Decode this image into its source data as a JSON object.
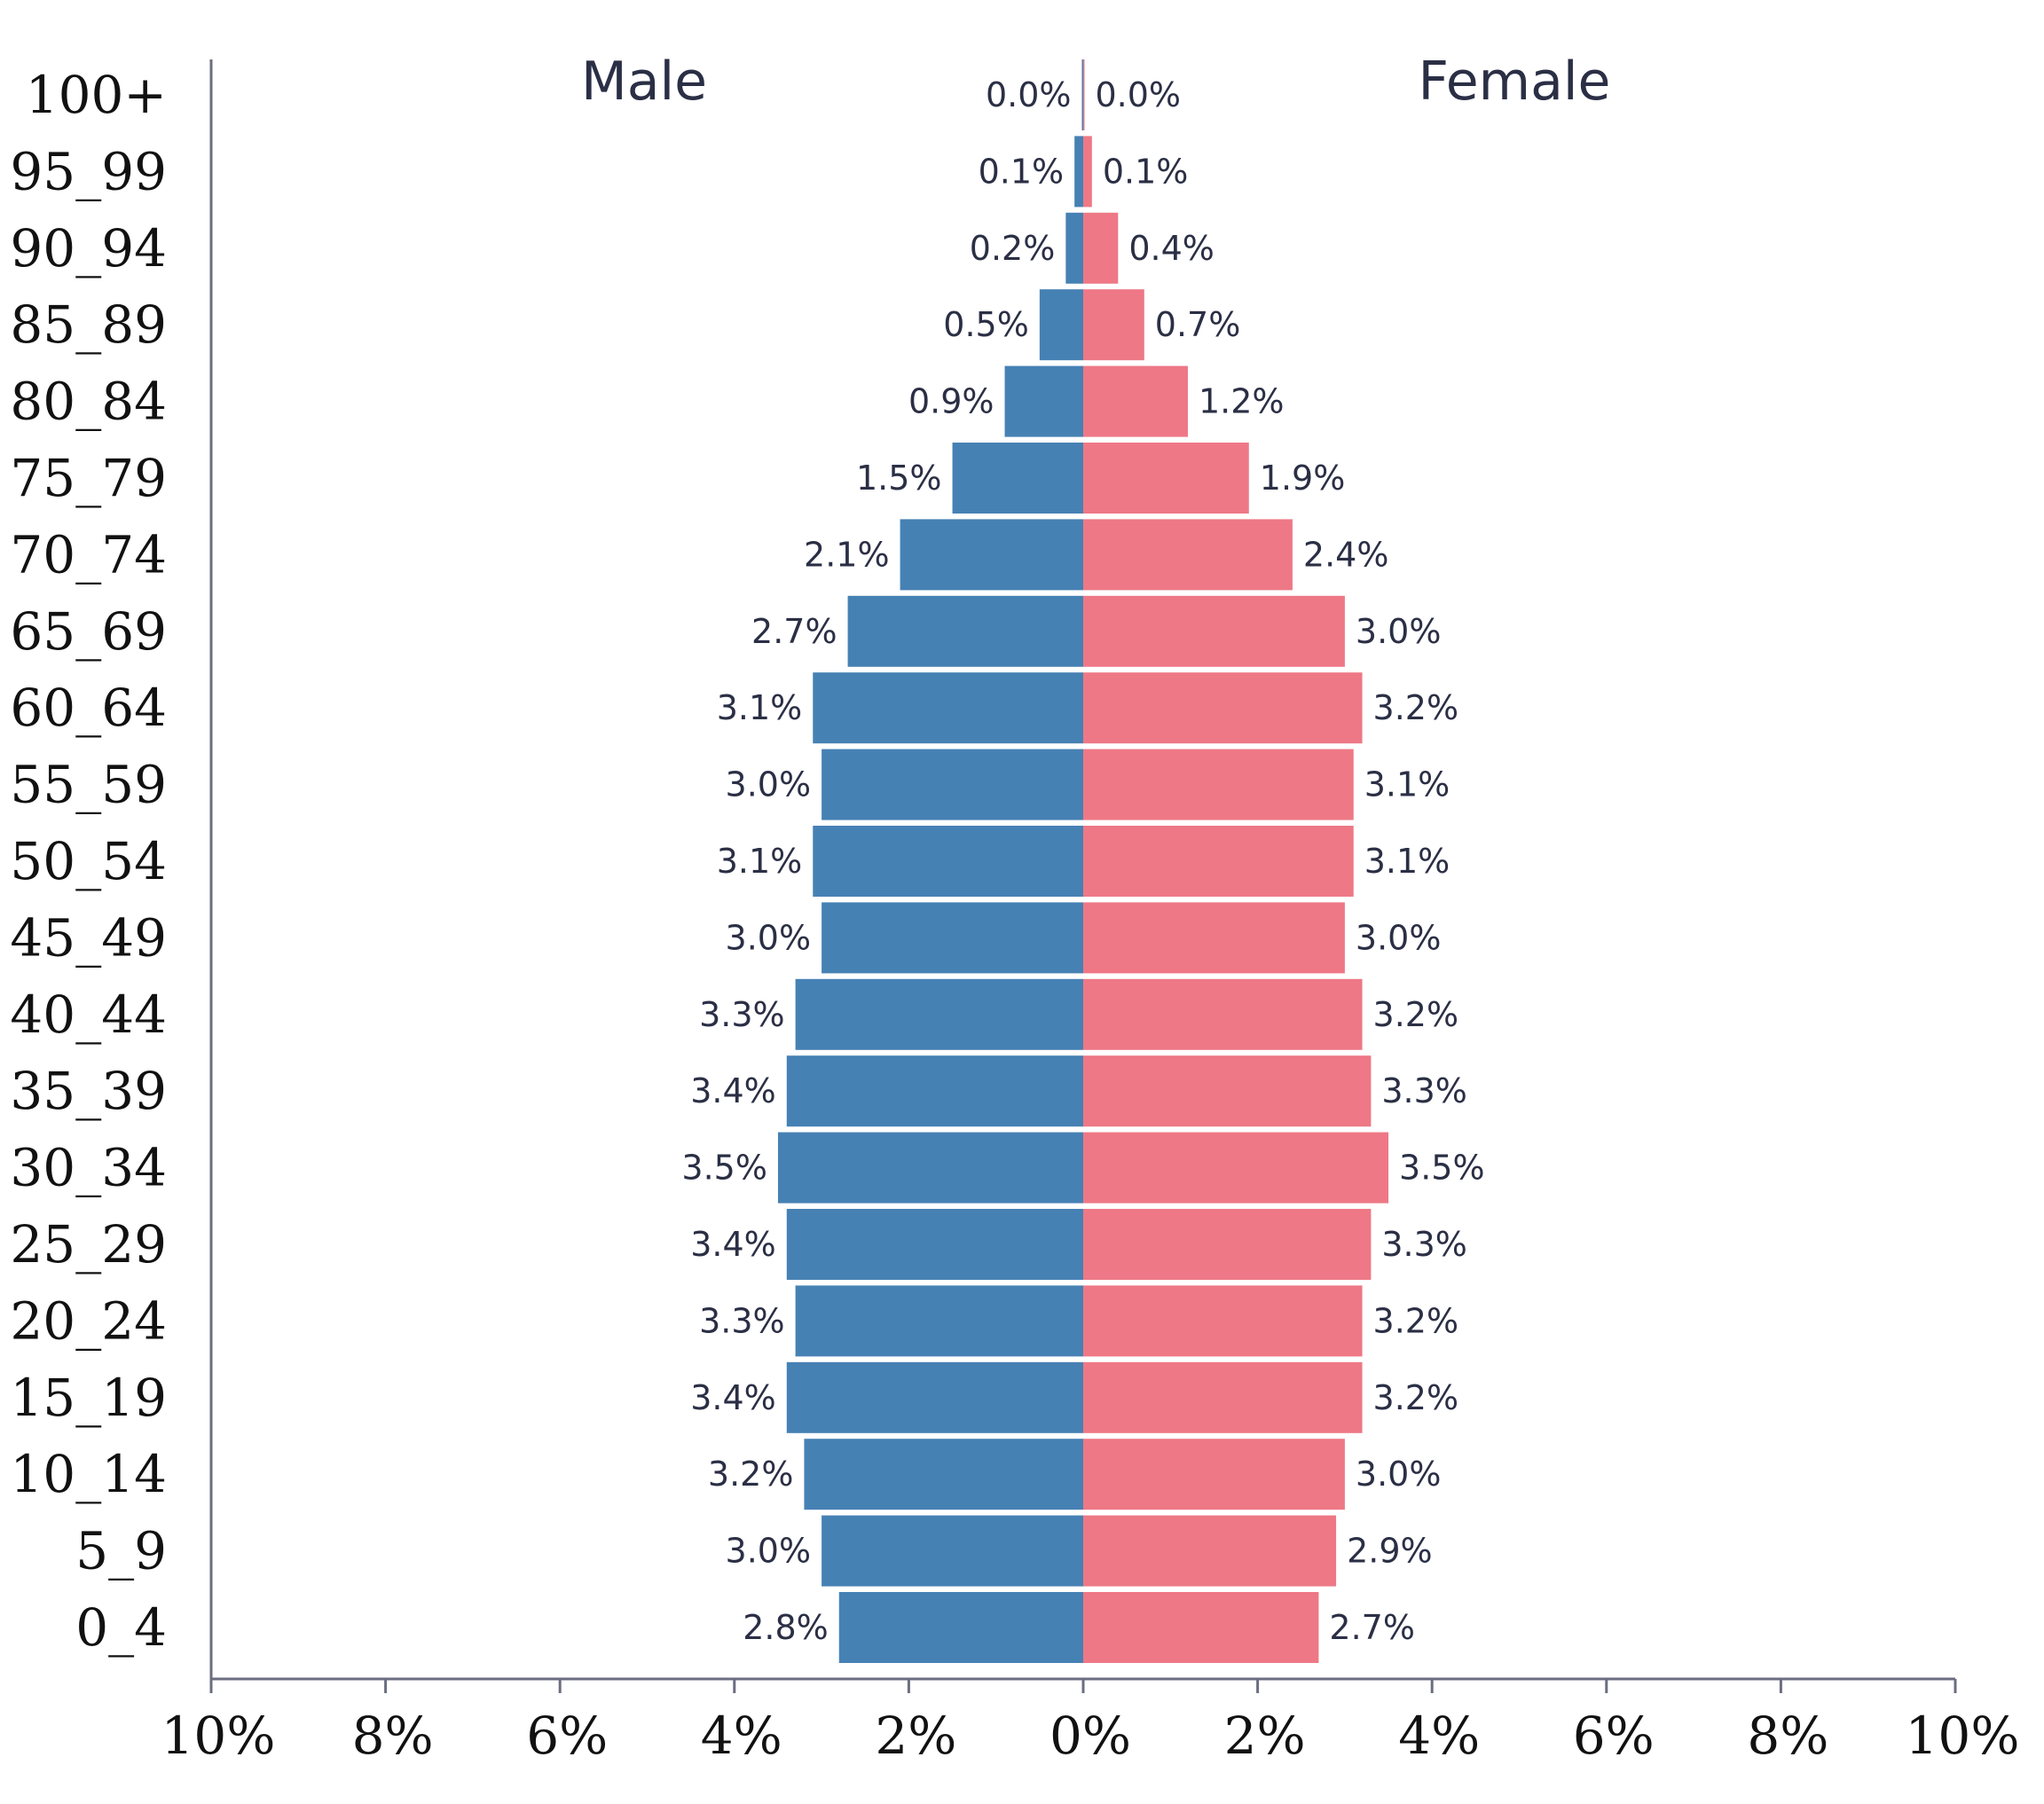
{
  "chart_data": {
    "type": "bar",
    "orientation": "horizontal",
    "subtype": "population-pyramid",
    "title": "",
    "categories": [
      "100+",
      "95_99",
      "90_94",
      "85_89",
      "80_84",
      "75_79",
      "70_74",
      "65_69",
      "60_64",
      "55_59",
      "50_54",
      "45_49",
      "40_44",
      "35_39",
      "30_34",
      "25_29",
      "20_24",
      "15_19",
      "10_14",
      "5_9",
      "0_4"
    ],
    "series": [
      {
        "name": "Male",
        "color": "#4681b4",
        "values": [
          0.0,
          0.1,
          0.2,
          0.5,
          0.9,
          1.5,
          2.1,
          2.7,
          3.1,
          3.0,
          3.1,
          3.0,
          3.3,
          3.4,
          3.5,
          3.4,
          3.3,
          3.4,
          3.2,
          3.0,
          2.8
        ],
        "labels": [
          "0.0%",
          "0.1%",
          "0.2%",
          "0.5%",
          "0.9%",
          "1.5%",
          "2.1%",
          "2.7%",
          "3.1%",
          "3.0%",
          "3.1%",
          "3.0%",
          "3.3%",
          "3.4%",
          "3.5%",
          "3.4%",
          "3.3%",
          "3.4%",
          "3.2%",
          "3.0%",
          "2.8%"
        ]
      },
      {
        "name": "Female",
        "color": "#ee7886",
        "values": [
          0.0,
          0.1,
          0.4,
          0.7,
          1.2,
          1.9,
          2.4,
          3.0,
          3.2,
          3.1,
          3.1,
          3.0,
          3.2,
          3.3,
          3.5,
          3.3,
          3.2,
          3.2,
          3.0,
          2.9,
          2.7
        ],
        "labels": [
          "0.0%",
          "0.1%",
          "0.4%",
          "0.7%",
          "1.2%",
          "1.9%",
          "2.4%",
          "3.0%",
          "3.2%",
          "3.1%",
          "3.1%",
          "3.0%",
          "3.2%",
          "3.3%",
          "3.5%",
          "3.3%",
          "3.2%",
          "3.2%",
          "3.0%",
          "2.9%",
          "2.7%"
        ]
      }
    ],
    "xlim": [
      -10,
      10
    ],
    "xticks": [
      -10,
      -8,
      -6,
      -4,
      -2,
      0,
      2,
      4,
      6,
      8,
      10
    ],
    "xtick_labels": [
      "10%",
      "8%",
      "6%",
      "4%",
      "2%",
      "0%",
      "2%",
      "4%",
      "6%",
      "8%",
      "10%"
    ],
    "xlabel": "",
    "ylabel": "",
    "grid": false,
    "axis_color": "#6b6e80"
  }
}
